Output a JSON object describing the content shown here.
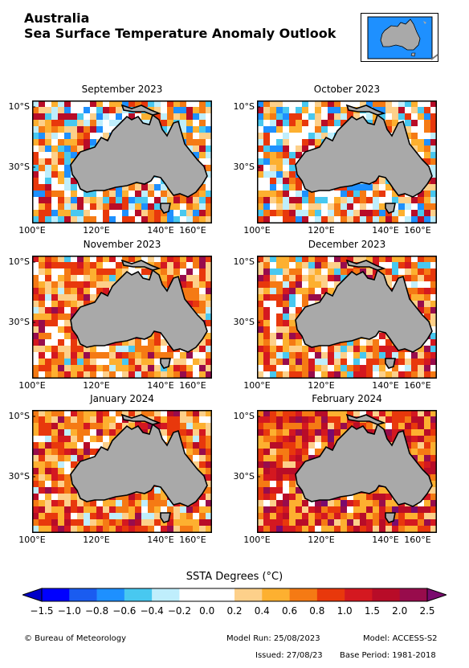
{
  "header": {
    "region": "Australia",
    "title": "Sea Surface Temperature Anomaly Outlook"
  },
  "panels": [
    {
      "month": "September 2023",
      "pattern": "mixed"
    },
    {
      "month": "October 2023",
      "pattern": "mixed"
    },
    {
      "month": "November 2023",
      "pattern": "warm"
    },
    {
      "month": "December 2023",
      "pattern": "warm"
    },
    {
      "month": "January 2024",
      "pattern": "warmer"
    },
    {
      "month": "February 2024",
      "pattern": "hot"
    }
  ],
  "axes": {
    "lat_labels": [
      "10°S",
      "30°S"
    ],
    "lon_labels": [
      "100°E",
      "120°E",
      "140°E",
      "160°E"
    ]
  },
  "colorbar": {
    "title": "SSTA Degrees (°C)",
    "ticks": [
      "−1.5",
      "−1.0",
      "−0.8",
      "−0.6",
      "−0.4",
      "−0.2",
      "0.0",
      "0.2",
      "0.4",
      "0.6",
      "0.8",
      "1.0",
      "1.5",
      "2.0",
      "2.5"
    ],
    "colors": [
      "#0000ff",
      "#1a5cf0",
      "#1e90ff",
      "#48c8f0",
      "#bfeefc",
      "#ffffff",
      "#ffffff",
      "#fdd08a",
      "#fdb030",
      "#f57a14",
      "#e8380c",
      "#d41820",
      "#b80c28",
      "#980c4c"
    ],
    "under_color": "#0000c8",
    "over_color": "#7a0a6e"
  },
  "footer": {
    "credit": "© Bureau of Meteorology",
    "model_run": "Model Run: 25/08/2023",
    "model": "Model: ACCESS-S2",
    "issued": "Issued: 27/08/23",
    "base_period": "Base Period: 1981-2018"
  }
}
